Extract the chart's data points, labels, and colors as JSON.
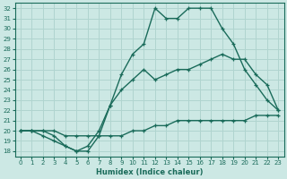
{
  "xlabel": "Humidex (Indice chaleur)",
  "bg_color": "#cce8e4",
  "grid_color": "#b0d4cf",
  "line_color": "#1a6b5a",
  "xlim": [
    -0.5,
    23.5
  ],
  "ylim": [
    17.5,
    32.5
  ],
  "xticks": [
    0,
    1,
    2,
    3,
    4,
    5,
    6,
    7,
    8,
    9,
    10,
    11,
    12,
    13,
    14,
    15,
    16,
    17,
    18,
    19,
    20,
    21,
    22,
    23
  ],
  "yticks": [
    18,
    19,
    20,
    21,
    22,
    23,
    24,
    25,
    26,
    27,
    28,
    29,
    30,
    31,
    32
  ],
  "curve_upper_x": [
    0,
    1,
    2,
    3,
    4,
    5,
    6,
    7,
    8,
    9,
    10,
    11,
    12,
    13,
    14,
    15,
    16,
    17,
    18,
    19,
    20,
    21,
    22,
    23
  ],
  "curve_upper_y": [
    20.0,
    20.0,
    19.5,
    19.0,
    18.5,
    18.0,
    18.0,
    19.5,
    22.5,
    25.5,
    27.5,
    28.5,
    32.0,
    31.0,
    31.0,
    32.0,
    32.0,
    32.0,
    30.0,
    28.5,
    26.0,
    24.5,
    23.0,
    22.0
  ],
  "curve_mid_x": [
    0,
    1,
    2,
    3,
    4,
    5,
    6,
    7,
    8,
    9,
    10,
    11,
    12,
    13,
    14,
    15,
    16,
    17,
    18,
    19,
    20,
    21,
    22,
    23
  ],
  "curve_mid_y": [
    20.0,
    20.0,
    20.0,
    19.5,
    18.5,
    18.0,
    18.5,
    20.0,
    22.5,
    24.0,
    25.0,
    26.0,
    25.0,
    25.5,
    26.0,
    26.0,
    26.5,
    27.0,
    27.5,
    27.0,
    27.0,
    25.5,
    24.5,
    22.0
  ],
  "curve_low_x": [
    0,
    1,
    2,
    3,
    4,
    5,
    6,
    7,
    8,
    9,
    10,
    11,
    12,
    13,
    14,
    15,
    16,
    17,
    18,
    19,
    20,
    21,
    22,
    23
  ],
  "curve_low_y": [
    20.0,
    20.0,
    20.0,
    20.0,
    19.5,
    19.5,
    19.5,
    19.5,
    19.5,
    19.5,
    20.0,
    20.0,
    20.5,
    20.5,
    21.0,
    21.0,
    21.0,
    21.0,
    21.0,
    21.0,
    21.0,
    21.5,
    21.5,
    21.5
  ]
}
